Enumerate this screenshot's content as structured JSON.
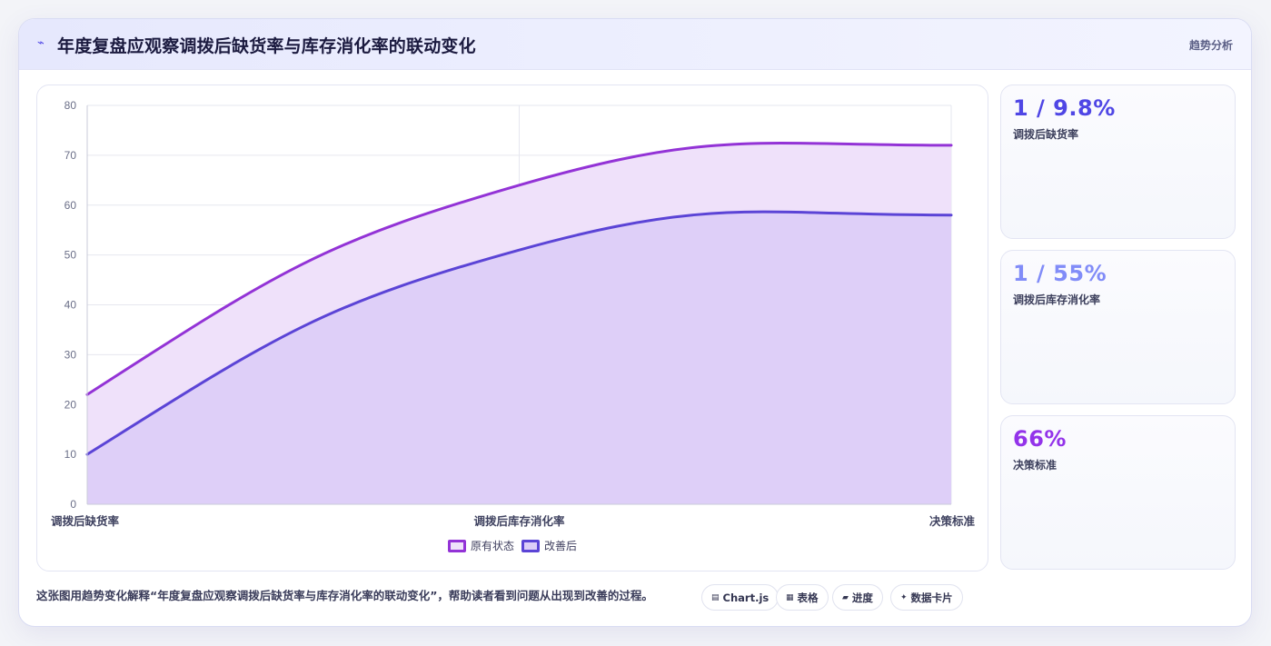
{
  "header": {
    "title": "年度复盘应观察调拨后缺货率与库存消化率的联动变化",
    "tag": "趋势分析",
    "icon": "trend-line-icon"
  },
  "chart_data": {
    "type": "area",
    "categories": [
      "调拨后缺货率",
      "调拨后库存消化率",
      "决策标准"
    ],
    "series": [
      {
        "name": "原有状态",
        "values": [
          22,
          64,
          72
        ],
        "color": "#9333d6",
        "fill": "#efe1fa"
      },
      {
        "name": "改善后",
        "values": [
          10,
          51,
          58
        ],
        "color": "#5b44d6",
        "fill": "#dccdf8"
      }
    ],
    "ylim": [
      0,
      80
    ],
    "yticks": [
      "0",
      "10",
      "20",
      "30",
      "40",
      "50",
      "60",
      "70",
      "80"
    ],
    "grid": true,
    "legend_position": "bottom"
  },
  "stats": [
    {
      "value": "1 / 9.8%",
      "label": "调拨后缺货率",
      "color": "#4f46e5"
    },
    {
      "value": "1 / 55%",
      "label": "调拨后库存消化率",
      "color": "#818cf8"
    },
    {
      "value": "66%",
      "label": "决策标准",
      "color": "#9333ea"
    }
  ],
  "footer": {
    "text": "这张图用趋势变化解释“年度复盘应观察调拨后缺货率与库存消化率的联动变化”，帮助读者看到问题从出现到改善的过程。",
    "pills": [
      {
        "icon": "▤",
        "label": "Chart.js"
      },
      {
        "icon": "▦",
        "label": "表格"
      },
      {
        "icon": "▰",
        "label": "进度"
      },
      {
        "icon": "✦",
        "label": "数据卡片"
      }
    ]
  }
}
